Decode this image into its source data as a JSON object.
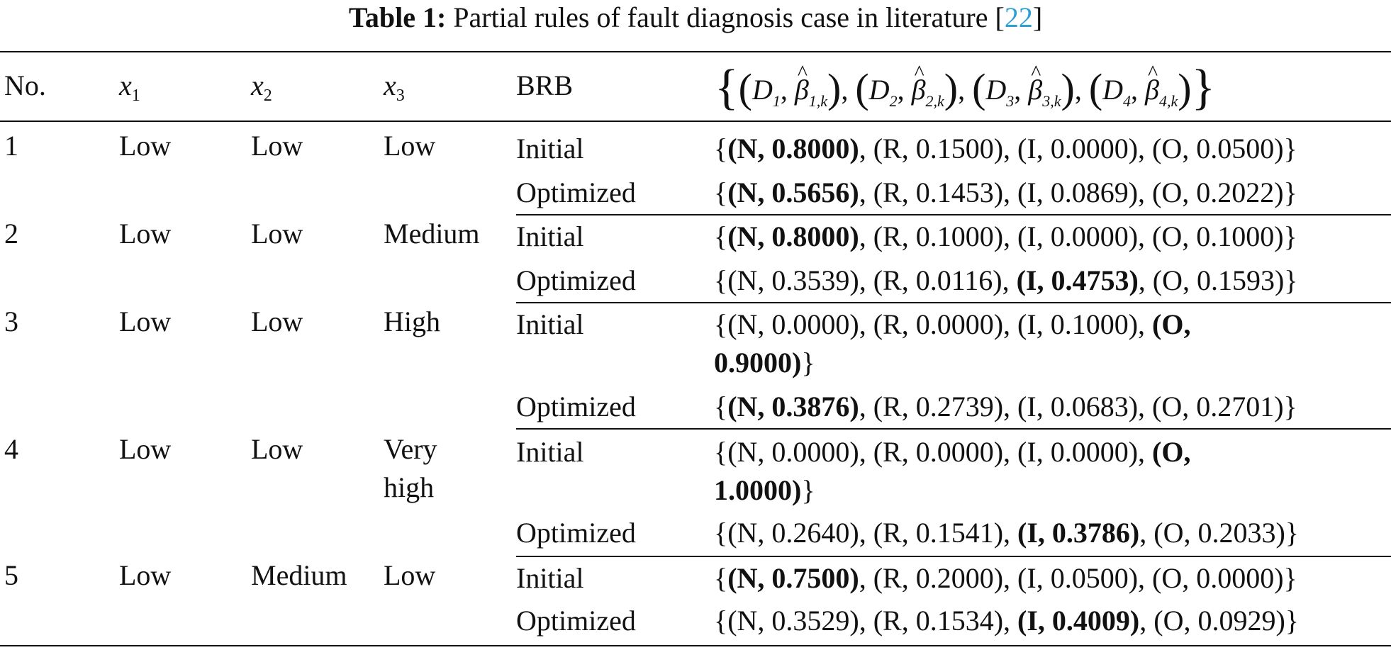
{
  "caption": {
    "label": "Table 1:",
    "text": "  Partial rules of fault diagnosis case in literature [",
    "ref": "22",
    "close": "]"
  },
  "header": {
    "no": "No.",
    "x1": "x",
    "x1_sub": "1",
    "x2": "x",
    "x2_sub": "2",
    "x3": "x",
    "x3_sub": "3",
    "brb": "BRB",
    "belief": {
      "D1": "D",
      "D1_sub": "1",
      "b1_sub": "1,k",
      "D2": "D",
      "D2_sub": "2",
      "b2_sub": "2,k",
      "D3": "D",
      "D3_sub": "3",
      "b3_sub": "3,k",
      "D4": "D",
      "D4_sub": "4",
      "b4_sub": "4,k",
      "beta": "β"
    }
  },
  "rows": [
    {
      "no": "1",
      "x1": "Low",
      "x2": "Low",
      "x3": "Low",
      "initial_label": "Initial",
      "initial": {
        "open": "{",
        "bold": "(N, 0.8000)",
        "rest": ", (R, 0.1500), (I, 0.0000), (O, 0.0500)}"
      },
      "optimized_label": "Optimized",
      "optimized": {
        "open": "{",
        "bold": "(N, 0.5656)",
        "rest": ", (R, 0.1453), (I, 0.0869), (O, 0.2022)}"
      }
    },
    {
      "no": "2",
      "x1": "Low",
      "x2": "Low",
      "x3": "Medium",
      "initial_label": "Initial",
      "initial": {
        "open": "{",
        "bold": "(N, 0.8000)",
        "rest": ", (R, 0.1000), (I, 0.0000), (O, 0.1000)}"
      },
      "optimized_label": "Optimized",
      "optimized": {
        "pre": "{(N, 0.3539), (R, 0.0116), ",
        "bold": "(I, 0.4753)",
        "rest": ", (O, 0.1593)}"
      }
    },
    {
      "no": "3",
      "x1": "Low",
      "x2": "Low",
      "x3": "High",
      "initial_label": "Initial",
      "initial": {
        "pre": "{(N, 0.0000), (R, 0.0000), (I, 0.1000), ",
        "bold": "(O,",
        "bold2": "0.9000)",
        "rest": "}"
      },
      "optimized_label": "Optimized",
      "optimized": {
        "open": "{",
        "bold": "(N, 0.3876)",
        "rest": ", (R, 0.2739), (I, 0.0683), (O, 0.2701)}"
      }
    },
    {
      "no": "4",
      "x1": "Low",
      "x2": "Low",
      "x3": "Very",
      "x3b": "high",
      "initial_label": "Initial",
      "initial": {
        "pre": "{(N, 0.0000), (R, 0.0000), (I, 0.0000), ",
        "bold": "(O,",
        "bold2": "1.0000)",
        "rest": "}"
      },
      "optimized_label": "Optimized",
      "optimized": {
        "pre": "{(N, 0.2640), (R, 0.1541), ",
        "bold": "(I, 0.3786)",
        "rest": ", (O, 0.2033)}"
      }
    },
    {
      "no": "5",
      "x1": "Low",
      "x2": "Medium",
      "x3": "Low",
      "initial_label": "Initial",
      "initial": {
        "open": "{",
        "bold": "(N, 0.7500)",
        "rest": ", (R, 0.2000), (I, 0.0500), (O, 0.0000)}"
      },
      "optimized_label": "Optimized",
      "optimized": {
        "pre": "{(N, 0.3529), (R, 0.1534), ",
        "bold": "(I, 0.4009)",
        "rest": ", (O, 0.0929)}"
      }
    }
  ]
}
